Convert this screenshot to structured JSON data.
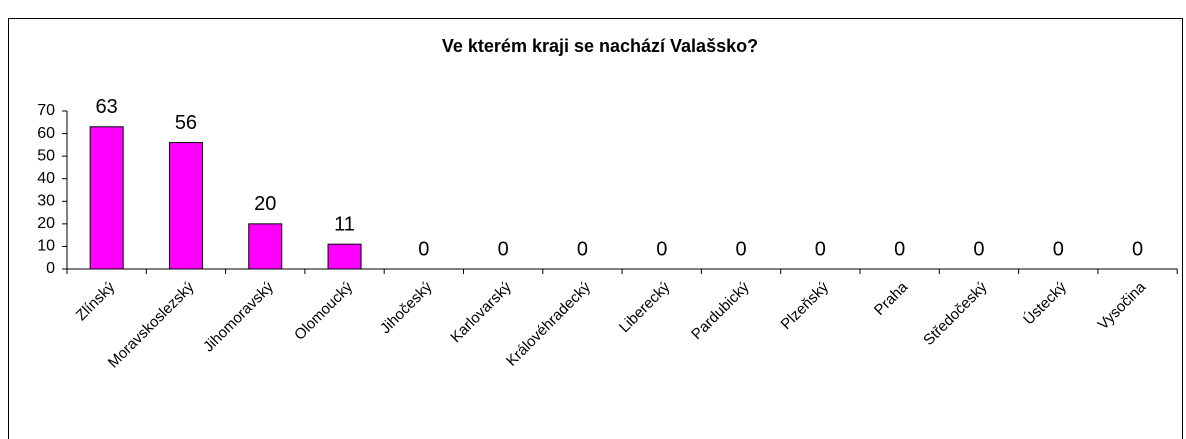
{
  "chart_data": {
    "type": "bar",
    "title": "Ve kterém kraji se nachází Valašsko?",
    "categories": [
      "Zlínský",
      "Moravskoslezský",
      "Jihomoravský",
      "Olomoucký",
      "Jihočeský",
      "Karlovarský",
      "Královéhradecký",
      "Liberecký",
      "Pardubický",
      "Plzeňský",
      "Praha",
      "Středočeský",
      "Ústecký",
      "Vysočina"
    ],
    "values": [
      63,
      56,
      20,
      11,
      0,
      0,
      0,
      0,
      0,
      0,
      0,
      0,
      0,
      0
    ],
    "color": "#ff00ff",
    "ylim": [
      0,
      70
    ],
    "yticks": [
      0,
      10,
      20,
      30,
      40,
      50,
      60,
      70
    ],
    "grid": false
  }
}
